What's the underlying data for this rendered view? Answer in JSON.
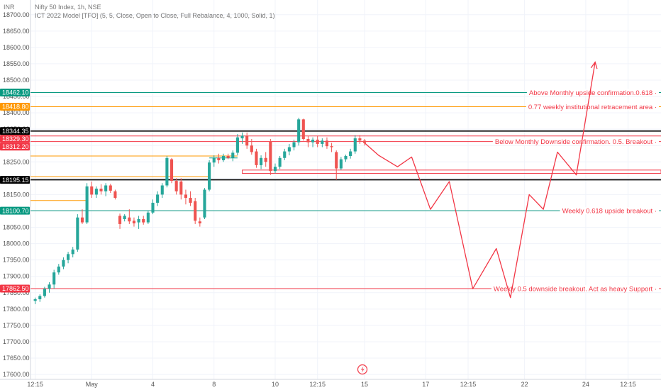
{
  "header": {
    "currency": "INR",
    "symbol_line": "Nifty 50 Index, 1h, NSE",
    "indicator_line": "ICT 2022 Model [TFO] (5, 5, Close, Open to Close, Full Rebalance, 4, 1000, Solid, 1)"
  },
  "colors": {
    "up": "#26a69a",
    "down": "#ef5350",
    "green_level": "#089981",
    "red_level": "#f23645",
    "orange_level": "#ff9800",
    "black_level": "#000000",
    "projection": "#f23645",
    "grid": "#f0f3fa"
  },
  "chart_data": {
    "type": "candlestick",
    "y_ticks": [
      "18700.00",
      "18650.00",
      "18600.00",
      "18550.00",
      "18500.00",
      "18450.00",
      "18400.00",
      "18350.00",
      "18300.00",
      "18250.00",
      "18200.00",
      "18150.00",
      "18100.00",
      "18050.00",
      "18000.00",
      "17950.00",
      "17900.00",
      "17850.00",
      "17800.00",
      "17750.00",
      "17700.00",
      "17650.00",
      "17600.00"
    ],
    "ylim": [
      17585,
      18745
    ],
    "x_ticks": [
      {
        "label": "12:15",
        "x": 0
      },
      {
        "label": "May",
        "x": 12
      },
      {
        "label": "4",
        "x": 25
      },
      {
        "label": "8",
        "x": 38
      },
      {
        "label": "10",
        "x": 51
      },
      {
        "label": "12:15",
        "x": 60
      },
      {
        "label": "15",
        "x": 70
      },
      {
        "label": "17",
        "x": 83
      },
      {
        "label": "12:15",
        "x": 92
      },
      {
        "label": "22",
        "x": 104
      },
      {
        "label": "24",
        "x": 117
      },
      {
        "label": "12:15",
        "x": 126
      }
    ],
    "xlim": [
      -1,
      133
    ],
    "candles": [
      {
        "x": 0,
        "o": 17825,
        "h": 17835,
        "l": 17815,
        "c": 17830
      },
      {
        "x": 1,
        "o": 17830,
        "h": 17845,
        "l": 17822,
        "c": 17840
      },
      {
        "x": 2,
        "o": 17840,
        "h": 17868,
        "l": 17835,
        "c": 17862
      },
      {
        "x": 3,
        "o": 17862,
        "h": 17882,
        "l": 17850,
        "c": 17875
      },
      {
        "x": 4,
        "o": 17875,
        "h": 17920,
        "l": 17862,
        "c": 17912
      },
      {
        "x": 5,
        "o": 17912,
        "h": 17938,
        "l": 17905,
        "c": 17930
      },
      {
        "x": 6,
        "o": 17930,
        "h": 17958,
        "l": 17922,
        "c": 17950
      },
      {
        "x": 7,
        "o": 17950,
        "h": 17975,
        "l": 17940,
        "c": 17968
      },
      {
        "x": 8,
        "o": 17968,
        "h": 17990,
        "l": 17958,
        "c": 17982
      },
      {
        "x": 9,
        "o": 17982,
        "h": 18090,
        "l": 17975,
        "c": 18080
      },
      {
        "x": 10,
        "o": 18080,
        "h": 18105,
        "l": 18060,
        "c": 18065
      },
      {
        "x": 11,
        "o": 18065,
        "h": 18185,
        "l": 18060,
        "c": 18175
      },
      {
        "x": 12,
        "o": 18175,
        "h": 18190,
        "l": 18140,
        "c": 18150
      },
      {
        "x": 13,
        "o": 18150,
        "h": 18175,
        "l": 18140,
        "c": 18168
      },
      {
        "x": 14,
        "o": 18168,
        "h": 18182,
        "l": 18150,
        "c": 18160
      },
      {
        "x": 15,
        "o": 18160,
        "h": 18185,
        "l": 18145,
        "c": 18178
      },
      {
        "x": 16,
        "o": 18178,
        "h": 18183,
        "l": 18155,
        "c": 18162
      },
      {
        "x": 17,
        "o": 18160,
        "h": 18165,
        "l": 18135,
        "c": 18140
      },
      {
        "x": 18,
        "o": 18085,
        "h": 18092,
        "l": 18045,
        "c": 18060
      },
      {
        "x": 19,
        "o": 18075,
        "h": 18090,
        "l": 18068,
        "c": 18085
      },
      {
        "x": 20,
        "o": 18080,
        "h": 18105,
        "l": 18060,
        "c": 18068
      },
      {
        "x": 21,
        "o": 18070,
        "h": 18080,
        "l": 18052,
        "c": 18062
      },
      {
        "x": 22,
        "o": 18065,
        "h": 18085,
        "l": 18045,
        "c": 18075
      },
      {
        "x": 23,
        "o": 18075,
        "h": 18085,
        "l": 18058,
        "c": 18065
      },
      {
        "x": 24,
        "o": 18065,
        "h": 18100,
        "l": 18060,
        "c": 18095
      },
      {
        "x": 25,
        "o": 18095,
        "h": 18135,
        "l": 18090,
        "c": 18125
      },
      {
        "x": 26,
        "o": 18125,
        "h": 18160,
        "l": 18115,
        "c": 18150
      },
      {
        "x": 27,
        "o": 18150,
        "h": 18185,
        "l": 18140,
        "c": 18178
      },
      {
        "x": 28,
        "o": 18178,
        "h": 18268,
        "l": 18172,
        "c": 18262
      },
      {
        "x": 29,
        "o": 18258,
        "h": 18262,
        "l": 18185,
        "c": 18192
      },
      {
        "x": 30,
        "o": 18192,
        "h": 18200,
        "l": 18150,
        "c": 18160
      },
      {
        "x": 31,
        "o": 18190,
        "h": 18200,
        "l": 18135,
        "c": 18150
      },
      {
        "x": 32,
        "o": 18150,
        "h": 18165,
        "l": 18120,
        "c": 18140
      },
      {
        "x": 33,
        "o": 18140,
        "h": 18160,
        "l": 18115,
        "c": 18125
      },
      {
        "x": 34,
        "o": 18130,
        "h": 18140,
        "l": 18060,
        "c": 18070
      },
      {
        "x": 35,
        "o": 18068,
        "h": 18080,
        "l": 18052,
        "c": 18062
      },
      {
        "x": 36,
        "o": 18080,
        "h": 18170,
        "l": 18075,
        "c": 18165
      },
      {
        "x": 37,
        "o": 18165,
        "h": 18255,
        "l": 18160,
        "c": 18248
      },
      {
        "x": 38,
        "o": 18248,
        "h": 18270,
        "l": 18235,
        "c": 18262
      },
      {
        "x": 39,
        "o": 18262,
        "h": 18275,
        "l": 18245,
        "c": 18255
      },
      {
        "x": 40,
        "o": 18255,
        "h": 18275,
        "l": 18250,
        "c": 18268
      },
      {
        "x": 41,
        "o": 18268,
        "h": 18275,
        "l": 18258,
        "c": 18262
      },
      {
        "x": 42,
        "o": 18262,
        "h": 18285,
        "l": 18252,
        "c": 18278
      },
      {
        "x": 43,
        "o": 18278,
        "h": 18335,
        "l": 18270,
        "c": 18325
      },
      {
        "x": 44,
        "o": 18322,
        "h": 18340,
        "l": 18305,
        "c": 18330
      },
      {
        "x": 45,
        "o": 18330,
        "h": 18340,
        "l": 18290,
        "c": 18300
      },
      {
        "x": 46,
        "o": 18300,
        "h": 18320,
        "l": 18272,
        "c": 18280
      },
      {
        "x": 47,
        "o": 18282,
        "h": 18290,
        "l": 18232,
        "c": 18240
      },
      {
        "x": 48,
        "o": 18240,
        "h": 18270,
        "l": 18228,
        "c": 18262
      },
      {
        "x": 49,
        "o": 18262,
        "h": 18280,
        "l": 18235,
        "c": 18250
      },
      {
        "x": 50,
        "o": 18312,
        "h": 18320,
        "l": 18210,
        "c": 18222
      },
      {
        "x": 51,
        "o": 18222,
        "h": 18245,
        "l": 18215,
        "c": 18235
      },
      {
        "x": 52,
        "o": 18235,
        "h": 18268,
        "l": 18228,
        "c": 18262
      },
      {
        "x": 53,
        "o": 18262,
        "h": 18290,
        "l": 18255,
        "c": 18282
      },
      {
        "x": 54,
        "o": 18282,
        "h": 18305,
        "l": 18270,
        "c": 18295
      },
      {
        "x": 55,
        "o": 18295,
        "h": 18318,
        "l": 18285,
        "c": 18310
      },
      {
        "x": 56,
        "o": 18310,
        "h": 18385,
        "l": 18300,
        "c": 18380
      },
      {
        "x": 57,
        "o": 18380,
        "h": 18382,
        "l": 18315,
        "c": 18320
      },
      {
        "x": 58,
        "o": 18320,
        "h": 18330,
        "l": 18295,
        "c": 18310
      },
      {
        "x": 59,
        "o": 18310,
        "h": 18325,
        "l": 18295,
        "c": 18318
      },
      {
        "x": 60,
        "o": 18318,
        "h": 18330,
        "l": 18295,
        "c": 18305
      },
      {
        "x": 61,
        "o": 18305,
        "h": 18322,
        "l": 18295,
        "c": 18315
      },
      {
        "x": 62,
        "o": 18315,
        "h": 18325,
        "l": 18290,
        "c": 18298
      },
      {
        "x": 63,
        "o": 18298,
        "h": 18308,
        "l": 18280,
        "c": 18295
      },
      {
        "x": 64,
        "o": 18280,
        "h": 18285,
        "l": 18195,
        "c": 18230
      },
      {
        "x": 65,
        "o": 18230,
        "h": 18265,
        "l": 18225,
        "c": 18258
      },
      {
        "x": 66,
        "o": 18258,
        "h": 18272,
        "l": 18250,
        "c": 18268
      },
      {
        "x": 67,
        "o": 18268,
        "h": 18290,
        "l": 18260,
        "c": 18282
      },
      {
        "x": 68,
        "o": 18282,
        "h": 18332,
        "l": 18275,
        "c": 18322
      },
      {
        "x": 69,
        "o": 18322,
        "h": 18332,
        "l": 18305,
        "c": 18315
      },
      {
        "x": 70,
        "o": 18315,
        "h": 18320,
        "l": 18300,
        "c": 18308
      }
    ],
    "levels": [
      {
        "price": 18462.1,
        "tag": "18462.10",
        "color": "#089981",
        "text": "Above Monthly upside confirmation.0.618",
        "text_color": "#f23645"
      },
      {
        "price": 18418.8,
        "tag": "18418.80",
        "color": "#ff9800",
        "text": "0.77 weekly institutional retracement area",
        "text_color": "#f23645"
      },
      {
        "price": 18344.35,
        "tag": "18344.35",
        "color": "#000000",
        "text": "",
        "text_color": "#000000"
      },
      {
        "price": 18329.3,
        "tag": "18329.30",
        "color": "#f23645",
        "text": "",
        "text_color": "#f23645"
      },
      {
        "price": 18312.2,
        "tag": "18312.20",
        "color": "#f23645",
        "text": "Below Monthly Downside confirmation. 0.5. Breakout",
        "text_color": "#f23645"
      },
      {
        "price": 18195.15,
        "tag": "18195.15",
        "color": "#000000",
        "text": "",
        "text_color": "#000000"
      },
      {
        "price": 18100.7,
        "tag": "18100.70",
        "color": "#089981",
        "text": "Weekly 0.618 upside breakout",
        "text_color": "#f23645"
      },
      {
        "price": 17862.5,
        "tag": "17862.50",
        "color": "#f23645",
        "text": "Weekly 0.5 downside breakout. Act as heavy Support",
        "text_color": "#f23645"
      }
    ],
    "short_levels": [
      {
        "price": 18268,
        "x_start": -1,
        "x_end": 43,
        "color": "#ff9800"
      },
      {
        "price": 18262,
        "x_start": 37,
        "x_end": 43,
        "color": "#089981"
      },
      {
        "price": 18205,
        "x_start": -1,
        "x_end": 37,
        "color": "#ff9800"
      },
      {
        "price": 18132,
        "x_start": -1,
        "x_end": 11,
        "color": "#ff9800"
      }
    ],
    "zone": {
      "top": 18225,
      "bottom": 18215,
      "x_start": 44,
      "x_end": 133,
      "color": "#f23645"
    },
    "projection": [
      {
        "x": 70,
        "y": 18308
      },
      {
        "x": 73,
        "y": 18270
      },
      {
        "x": 77,
        "y": 18235
      },
      {
        "x": 80,
        "y": 18265
      },
      {
        "x": 84,
        "y": 18105
      },
      {
        "x": 88,
        "y": 18190
      },
      {
        "x": 93,
        "y": 17862
      },
      {
        "x": 98,
        "y": 17985
      },
      {
        "x": 101,
        "y": 17835
      },
      {
        "x": 105,
        "y": 18150
      },
      {
        "x": 108,
        "y": 18105
      },
      {
        "x": 111,
        "y": 18280
      },
      {
        "x": 115,
        "y": 18210
      },
      {
        "x": 119,
        "y": 18555
      }
    ]
  }
}
